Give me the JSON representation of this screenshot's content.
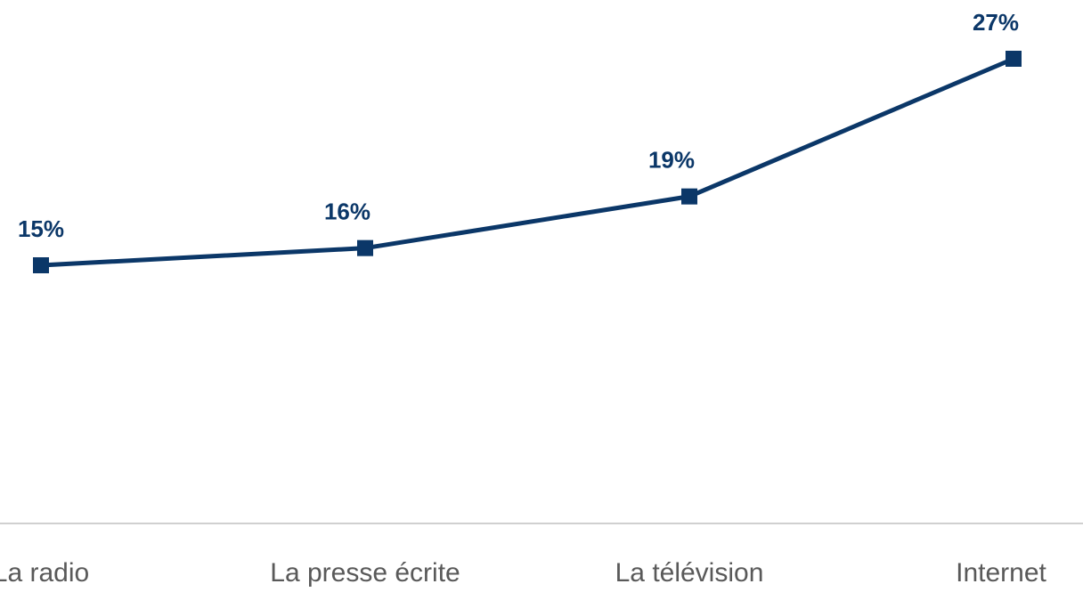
{
  "chart_data": {
    "type": "line",
    "categories": [
      "La radio",
      "La presse écrite",
      "La télévision",
      "Internet"
    ],
    "values": [
      15,
      16,
      19,
      27
    ],
    "value_labels": [
      "15%",
      "16%",
      "19%",
      "27%"
    ],
    "color": "#0b3768",
    "ylim": [
      0,
      30
    ]
  }
}
